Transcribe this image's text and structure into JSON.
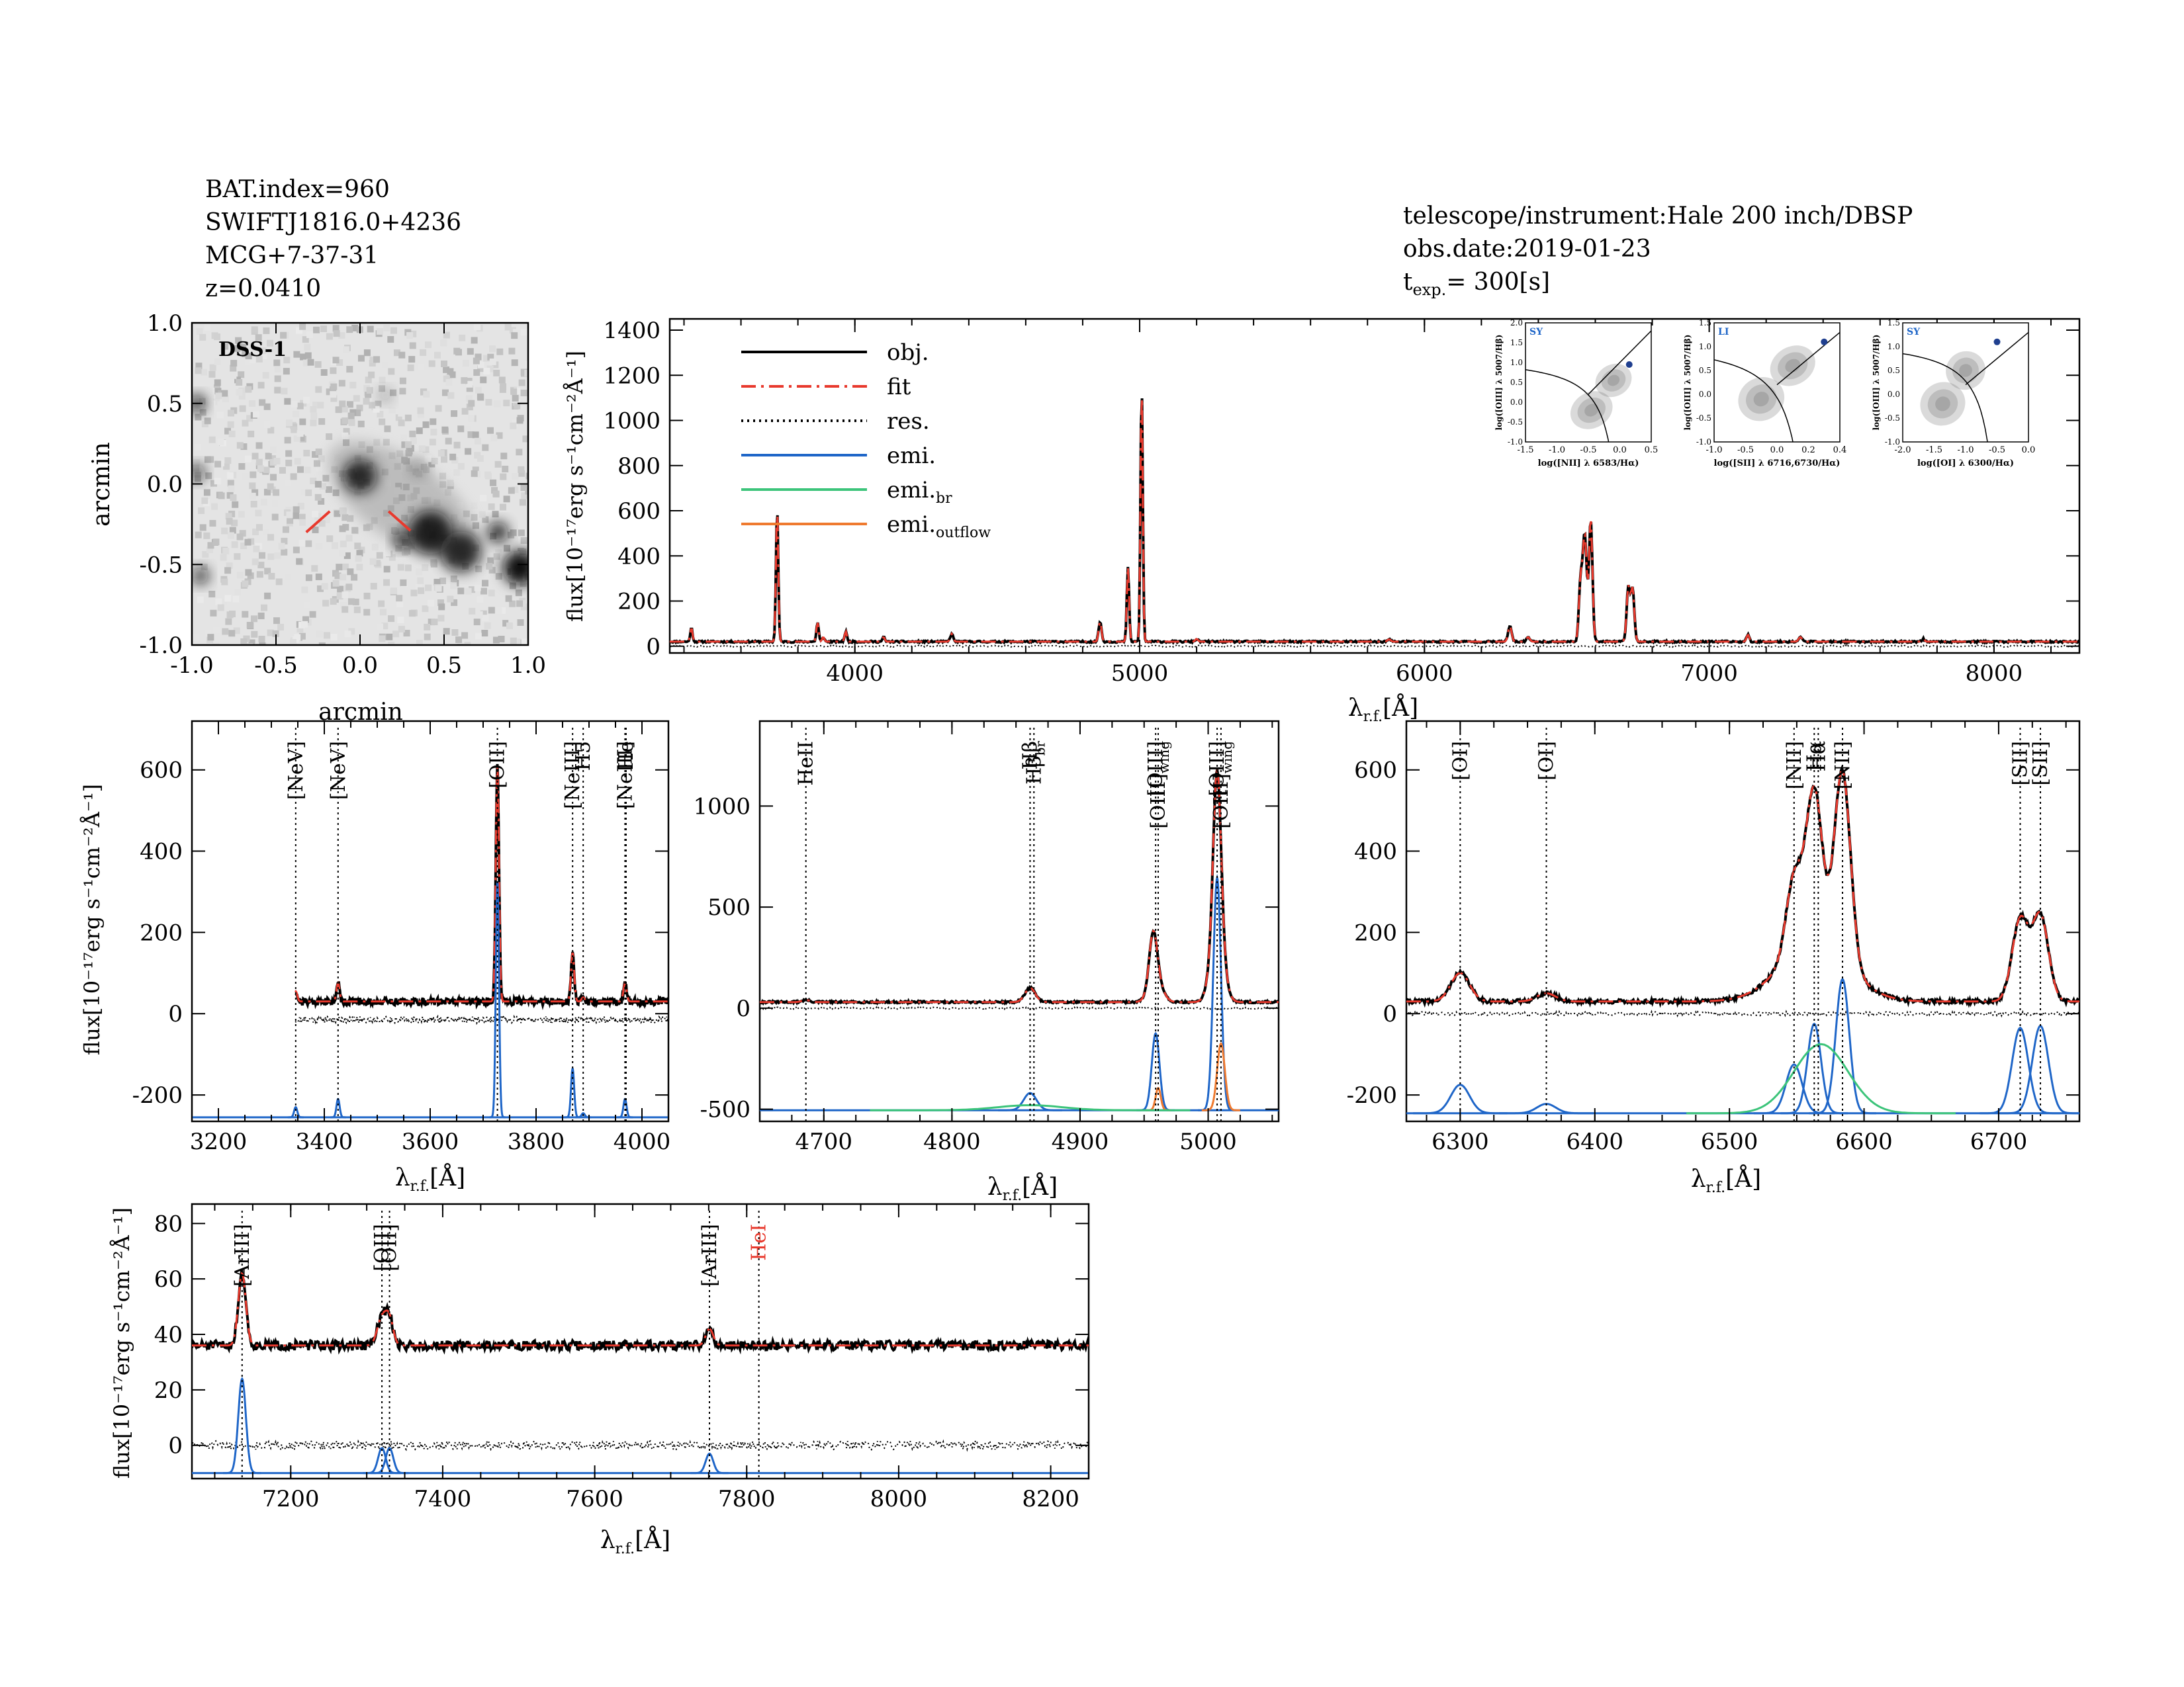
{
  "header": {
    "left": [
      "BAT.index=960",
      "SWIFTJ1816.0+4236",
      "MCG+7-37-31",
      "z=0.0410"
    ],
    "instrument": "telescope/instrument:Hale 200 inch/DBSP",
    "obs_date": "obs.date:2019-01-23",
    "texp_prefix": "t",
    "texp_sub": "exp.",
    "texp_value": "= 300[s]"
  },
  "axis_text": {
    "flux_ylabel": "flux[10⁻¹⁷erg s⁻¹cm⁻²Å⁻¹]",
    "lambda_main": "λ",
    "lambda_sub": "r.f.",
    "lambda_unit": "[Å]"
  },
  "colors": {
    "obj": "#000000",
    "fit": "#e8392d",
    "res": "#000000",
    "emi": "#1f66c8",
    "emi_br": "#3cc47a",
    "emi_outflow": "#ef7a2f",
    "hei_label": "#e8392d",
    "dss_bg": "#e4e4e4"
  },
  "chart_data": [
    {
      "id": "dss",
      "type": "image",
      "label": "DSS-1",
      "xlabel": "arcmin",
      "ylabel": "arcmin",
      "xlim": [
        -1.0,
        1.0
      ],
      "ylim": [
        -1.0,
        1.0
      ],
      "x_ticks": [
        "-1.0",
        "-0.5",
        "0.0",
        "0.5",
        "1.0"
      ],
      "y_ticks": [
        "-1.0",
        "-0.5",
        "0.0",
        "0.5",
        "1.0"
      ],
      "sources": [
        {
          "x": 0.0,
          "y": 0.05,
          "r": 0.1,
          "a": 0.85
        },
        {
          "x": 0.42,
          "y": -0.3,
          "r": 0.13,
          "a": 0.9
        },
        {
          "x": 0.6,
          "y": -0.42,
          "r": 0.12,
          "a": 0.85
        },
        {
          "x": 0.95,
          "y": -0.52,
          "r": 0.1,
          "a": 1.0
        },
        {
          "x": 0.82,
          "y": -0.3,
          "r": 0.06,
          "a": 0.9
        },
        {
          "x": 0.25,
          "y": -0.35,
          "r": 0.05,
          "a": 0.9
        },
        {
          "x": -0.97,
          "y": 0.5,
          "r": 0.05,
          "a": 0.9
        },
        {
          "x": -0.95,
          "y": -0.57,
          "r": 0.05,
          "a": 0.8
        },
        {
          "x": -0.97,
          "y": 0.07,
          "r": 0.05,
          "a": 0.7
        },
        {
          "x": 0.35,
          "y": 0.1,
          "r": 0.05,
          "a": 0.3
        },
        {
          "x": 0.15,
          "y": 0.55,
          "r": 0.04,
          "a": 0.3
        }
      ]
    },
    {
      "id": "main",
      "type": "line",
      "xlim": [
        3350,
        8300
      ],
      "ylim": [
        -30,
        1450
      ],
      "x_ticks": [
        4000,
        5000,
        6000,
        7000,
        8000
      ],
      "y_ticks": [
        0,
        200,
        400,
        600,
        800,
        1000,
        1200,
        1400
      ],
      "continuum": 20,
      "lines": [
        [
          3426,
          60,
          4
        ],
        [
          3727,
          590,
          4
        ],
        [
          3869,
          85,
          4
        ],
        [
          3889,
          20,
          4
        ],
        [
          3968,
          45,
          4
        ],
        [
          4101,
          20,
          4
        ],
        [
          4340,
          35,
          5
        ],
        [
          4861,
          90,
          5
        ],
        [
          4959,
          330,
          4
        ],
        [
          5007,
          1130,
          4
        ],
        [
          5200,
          12,
          5
        ],
        [
          5876,
          10,
          6
        ],
        [
          6300,
          70,
          6
        ],
        [
          6364,
          20,
          6
        ],
        [
          6548,
          250,
          6
        ],
        [
          6563,
          470,
          7
        ],
        [
          6584,
          540,
          6
        ],
        [
          6716,
          240,
          6
        ],
        [
          6731,
          230,
          6
        ],
        [
          7136,
          30,
          5
        ],
        [
          7320,
          20,
          6
        ],
        [
          7751,
          12,
          5
        ]
      ],
      "legend": [
        {
          "label": "obj.",
          "style": "obj"
        },
        {
          "label": "fit",
          "style": "fit"
        },
        {
          "label": "res.",
          "style": "res"
        },
        {
          "label": "emi.",
          "style": "emi"
        },
        {
          "label": "emi.",
          "sub": "br",
          "style": "emi_br"
        },
        {
          "label": "emi.",
          "sub": "outflow",
          "style": "emi_outflow"
        }
      ],
      "insets": [
        {
          "tag": "SY",
          "xlabel": "log([NII] λ 6583/Hα)",
          "ylabel": "log([OIII] λ 5007/Hβ)",
          "xlim": [
            -1.5,
            0.5
          ],
          "ylim": [
            -1.0,
            2.0
          ],
          "x_ticks": [
            "-1.5",
            "-1.0",
            "-0.5",
            "0.0",
            "0.5"
          ],
          "y_ticks": [
            "-1.0",
            "-0.5",
            "0.0",
            "0.5",
            "1.0",
            "1.5",
            "2.0"
          ],
          "point": [
            0.15,
            0.95
          ],
          "blobs": [
            [
              -0.45,
              -0.2,
              0.35,
              0.45
            ],
            [
              -0.1,
              0.55,
              0.3,
              0.4
            ]
          ]
        },
        {
          "tag": "LI",
          "xlabel": "log([SII] λ 6716,6730/Hα)",
          "ylabel": "log([OIII] λ 5007/Hβ)",
          "xlim": [
            -1.2,
            0.4
          ],
          "ylim": [
            -1.0,
            1.5
          ],
          "x_ticks": [
            "-1.0",
            "-0.5",
            "0.0",
            "0.2",
            "0.4"
          ],
          "y_ticks": [
            "-1.0",
            "-0.5",
            "0.0",
            "0.5",
            "1.0",
            "1.5"
          ],
          "point": [
            0.2,
            1.1
          ],
          "blobs": [
            [
              -0.6,
              -0.1,
              0.3,
              0.45
            ],
            [
              -0.2,
              0.6,
              0.3,
              0.4
            ]
          ]
        },
        {
          "tag": "SY",
          "xlabel": "log([OI] λ 6300/Hα)",
          "ylabel": "log([OIII] λ 5007/Hβ)",
          "xlim": [
            -2.2,
            0.0
          ],
          "ylim": [
            -1.0,
            1.5
          ],
          "x_ticks": [
            "-2.0",
            "-1.5",
            "-1.0",
            "-0.5",
            "0.0"
          ],
          "y_ticks": [
            "-1.0",
            "-0.5",
            "0.0",
            "0.5",
            "1.0",
            "1.5"
          ],
          "point": [
            -0.55,
            1.1
          ],
          "blobs": [
            [
              -1.5,
              -0.2,
              0.4,
              0.45
            ],
            [
              -1.1,
              0.5,
              0.35,
              0.4
            ]
          ]
        }
      ]
    },
    {
      "id": "p1",
      "type": "line",
      "xlim": [
        3150,
        4050
      ],
      "ylim": [
        -265,
        720
      ],
      "x_ticks": [
        3200,
        3400,
        3600,
        3800,
        4000
      ],
      "y_ticks": [
        -200,
        0,
        200,
        400,
        600
      ],
      "data_start": 3345,
      "continuum": 30,
      "emi_baseline": -255,
      "lines": [
        [
          3346,
          25,
          3
        ],
        [
          3426,
          45,
          3
        ],
        [
          3727,
          580,
          3
        ],
        [
          3869,
          120,
          3
        ],
        [
          3889,
          10,
          3
        ],
        [
          3968,
          45,
          3
        ]
      ],
      "line_markers": [
        {
          "label": "[NeV]",
          "x": 3346
        },
        {
          "label": "[NeV]",
          "x": 3426
        },
        {
          "label": "[OII]",
          "x": 3727
        },
        {
          "label": "[NeIII]",
          "x": 3869
        },
        {
          "label": "H5",
          "x": 3889
        },
        {
          "label": "[NeIII]",
          "x": 3968
        },
        {
          "label": "He",
          "x": 3970
        }
      ]
    },
    {
      "id": "p2",
      "type": "line",
      "xlim": [
        4650,
        5055
      ],
      "ylim": [
        -560,
        1420
      ],
      "x_ticks": [
        4700,
        4800,
        4900,
        5000
      ],
      "y_ticks": [
        -500,
        0,
        500,
        1000
      ],
      "continuum": 30,
      "emi_baseline": -505,
      "lines": [
        [
          4686,
          10,
          3
        ],
        [
          4861,
          70,
          4
        ],
        [
          4957,
          240,
          3
        ],
        [
          4959,
          120,
          5
        ],
        [
          5007,
          800,
          3
        ],
        [
          5007,
          350,
          5
        ]
      ],
      "emi_comps": [
        [
          4861,
          85,
          5,
          "emi"
        ],
        [
          4959,
          380,
          3,
          "emi"
        ],
        [
          5007,
          1150,
          3,
          "emi"
        ],
        [
          4961,
          110,
          2,
          "emi_outflow"
        ],
        [
          5010,
          330,
          3,
          "emi_outflow"
        ],
        [
          4861,
          25,
          25,
          "emi_br"
        ]
      ],
      "line_markers": [
        {
          "label": "HeII",
          "x": 4686
        },
        {
          "label": "Hβ",
          "x": 4861
        },
        {
          "label": "Hβ",
          "sub": "br",
          "x": 4864
        },
        {
          "label": "[OIII]",
          "x": 4959
        },
        {
          "label": "[OIII]",
          "sub": "wing",
          "x": 4961
        },
        {
          "label": "[OIII]",
          "x": 5007
        },
        {
          "label": "[OIII]",
          "sub": "wing",
          "x": 5010
        }
      ]
    },
    {
      "id": "p3",
      "type": "line",
      "xlim": [
        6260,
        6760
      ],
      "ylim": [
        -265,
        720
      ],
      "x_ticks": [
        6300,
        6400,
        6500,
        6600,
        6700
      ],
      "y_ticks": [
        -200,
        0,
        200,
        400,
        600
      ],
      "continuum": 30,
      "emi_baseline": -245,
      "lines": [
        [
          6300,
          70,
          7
        ],
        [
          6364,
          20,
          7
        ],
        [
          6548,
          190,
          6
        ],
        [
          6563,
          380,
          6
        ],
        [
          6584,
          470,
          6
        ],
        [
          6563,
          140,
          25
        ],
        [
          6716,
          200,
          6
        ],
        [
          6731,
          210,
          6
        ]
      ],
      "emi_comps": [
        [
          6300,
          70,
          7,
          "emi"
        ],
        [
          6364,
          23,
          7,
          "emi"
        ],
        [
          6548,
          120,
          6,
          "emi"
        ],
        [
          6563,
          220,
          5,
          "emi"
        ],
        [
          6584,
          330,
          5,
          "emi"
        ],
        [
          6716,
          210,
          6,
          "emi"
        ],
        [
          6731,
          215,
          6,
          "emi"
        ],
        [
          6568,
          170,
          20,
          "emi_br"
        ]
      ],
      "line_markers": [
        {
          "label": "[OI]",
          "x": 6300
        },
        {
          "label": "[OI]",
          "x": 6364
        },
        {
          "label": "[NII]",
          "x": 6548
        },
        {
          "label": "Hα",
          "x": 6563
        },
        {
          "label": "Hα",
          "x": 6566
        },
        {
          "label": "[NII]",
          "x": 6584
        },
        {
          "label": "[SII]",
          "x": 6716
        },
        {
          "label": "[SII]",
          "x": 6731
        }
      ]
    },
    {
      "id": "p4",
      "type": "line",
      "xlim": [
        7070,
        8250
      ],
      "ylim": [
        -12,
        87
      ],
      "x_ticks": [
        7200,
        7400,
        7600,
        7800,
        8000,
        8200
      ],
      "y_ticks": [
        0,
        20,
        40,
        60,
        80
      ],
      "continuum": 36,
      "emi_baseline": -10,
      "lines": [
        [
          7136,
          26,
          5
        ],
        [
          7320,
          10,
          6
        ],
        [
          7330,
          9,
          5
        ],
        [
          7751,
          6,
          5
        ]
      ],
      "emi_comps": [
        [
          7136,
          34,
          5,
          "emi"
        ],
        [
          7320,
          9,
          5,
          "emi"
        ],
        [
          7330,
          9,
          5,
          "emi"
        ],
        [
          7751,
          7,
          5,
          "emi"
        ]
      ],
      "line_markers": [
        {
          "label": "[ArIII]",
          "x": 7136
        },
        {
          "label": "[OII]",
          "x": 7320
        },
        {
          "label": "[OII]",
          "x": 7330
        },
        {
          "label": "[ArIII]",
          "x": 7751
        },
        {
          "label": "HeI",
          "x": 7816,
          "red": true
        }
      ]
    }
  ]
}
